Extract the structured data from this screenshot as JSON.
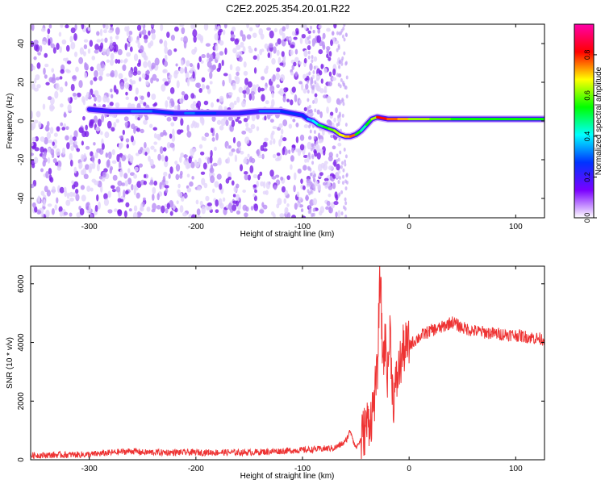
{
  "title": "C2E2.2025.354.20.01.R22",
  "chart_data": [
    {
      "type": "heatmap",
      "xlabel": "Height of straight line (km)",
      "ylabel": "Frequency (Hz)",
      "xlim": [
        -355,
        127
      ],
      "ylim": [
        -50,
        50
      ],
      "xticks": [
        -300,
        -200,
        -100,
        0,
        100
      ],
      "yticks": [
        -40,
        -20,
        0,
        20,
        40
      ],
      "colorbar": {
        "label": "Normalized spectral amplitude",
        "range": [
          0,
          0.95
        ],
        "ticks": [
          0.0,
          0.2,
          0.4,
          0.6,
          0.8
        ],
        "colors": [
          "#ffffff",
          "#7a00ff",
          "#0033ff",
          "#00ffff",
          "#00ff00",
          "#ffff00",
          "#ff0000",
          "#ff00aa"
        ]
      },
      "signal_trace": {
        "x": [
          -300,
          -280,
          -260,
          -240,
          -220,
          -210,
          -200,
          -180,
          -160,
          -140,
          -130,
          -120,
          -100,
          -95,
          -90,
          -85,
          -80,
          -75,
          -70,
          -65,
          -60,
          -55,
          -50,
          -45,
          -40,
          -35,
          -30,
          -20,
          -10,
          0,
          20,
          40,
          60,
          80,
          100,
          127
        ],
        "y": [
          6,
          5,
          5,
          5,
          4,
          4,
          4,
          4,
          4,
          5,
          5,
          5,
          3,
          1,
          0,
          -2,
          -3,
          -4,
          -5,
          -7,
          -8,
          -8,
          -7,
          -5,
          -2,
          1,
          2,
          1,
          1,
          1,
          1,
          1,
          1,
          1,
          1,
          1
        ],
        "amplitude": [
          0.25,
          0.3,
          0.35,
          0.3,
          0.25,
          0.35,
          0.3,
          0.25,
          0.25,
          0.35,
          0.35,
          0.3,
          0.3,
          0.4,
          0.45,
          0.55,
          0.6,
          0.65,
          0.7,
          0.75,
          0.8,
          0.85,
          0.6,
          0.5,
          0.6,
          0.7,
          0.9,
          0.85,
          0.8,
          0.7,
          0.65,
          0.6,
          0.6,
          0.6,
          0.6,
          0.6
        ]
      },
      "noise_region_x": [
        -355,
        -65
      ]
    },
    {
      "type": "line",
      "xlabel": "Height of straight line (km)",
      "ylabel": "SNR (10 * v/v)",
      "xlim": [
        -355,
        127
      ],
      "ylim": [
        0,
        6600
      ],
      "xticks": [
        -300,
        -200,
        -100,
        0,
        100
      ],
      "yticks": [
        0,
        2000,
        4000,
        6000
      ],
      "color": "#ee3333",
      "series": [
        {
          "x": [
            -355,
            -300,
            -260,
            -250,
            -200,
            -150,
            -100,
            -70,
            -60,
            -55,
            -50,
            -45,
            -40,
            -35,
            -30,
            -27,
            -25,
            -22,
            -20,
            -18,
            -15,
            -10,
            -5,
            0,
            10,
            20,
            30,
            40,
            50,
            60,
            80,
            100,
            127
          ],
          "y": [
            150,
            180,
            300,
            250,
            250,
            250,
            330,
            400,
            600,
            1000,
            400,
            700,
            1200,
            1500,
            2800,
            6500,
            3500,
            4000,
            2800,
            4500,
            2000,
            3000,
            3800,
            3900,
            4200,
            4400,
            4500,
            4700,
            4500,
            4400,
            4300,
            4250,
            4100
          ]
        }
      ]
    }
  ]
}
